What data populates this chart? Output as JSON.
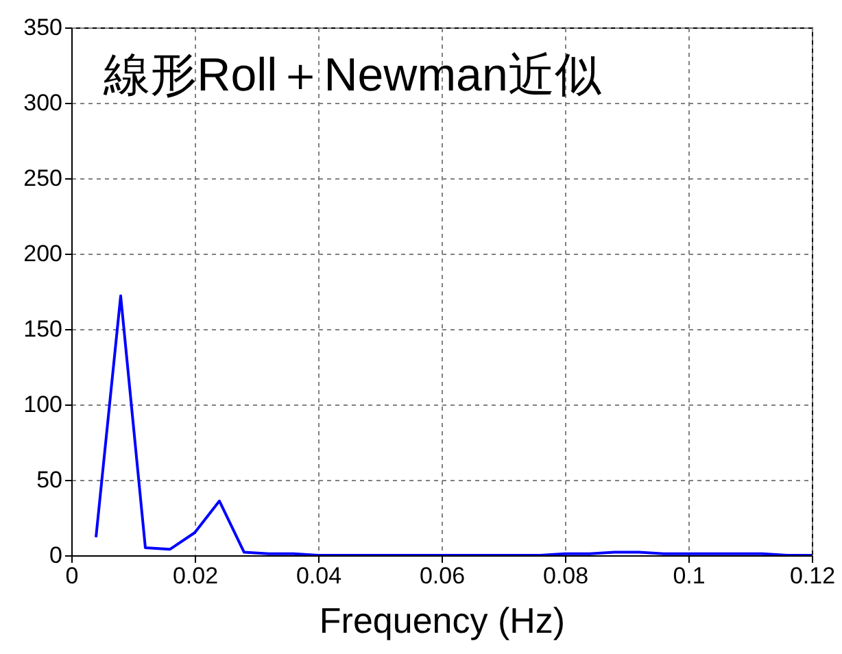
{
  "chart_data": {
    "type": "line",
    "title": "線形Roll＋Newman近似",
    "xlabel": "Frequency (Hz)",
    "x": [
      0.004,
      0.008,
      0.012,
      0.016,
      0.02,
      0.024,
      0.028,
      0.032,
      0.036,
      0.04,
      0.044,
      0.048,
      0.052,
      0.056,
      0.06,
      0.064,
      0.068,
      0.072,
      0.076,
      0.08,
      0.084,
      0.088,
      0.092,
      0.096,
      0.1,
      0.104,
      0.108,
      0.112,
      0.116,
      0.12
    ],
    "series": [
      {
        "color": "#0000ff",
        "values": [
          12,
          172,
          5,
          4,
          15,
          36,
          2,
          1,
          1,
          0,
          0,
          0,
          0,
          0,
          0,
          0,
          0,
          0,
          0,
          1,
          1,
          2,
          2,
          1,
          1,
          1,
          1,
          1,
          0,
          0
        ]
      }
    ],
    "xlim": [
      0,
      0.12
    ],
    "xticks": [
      0,
      0.02,
      0.04,
      0.06,
      0.08,
      0.1,
      0.12
    ],
    "ylim": [
      0,
      350
    ],
    "yticks": [
      0,
      50,
      100,
      150,
      200,
      250,
      300,
      350
    ],
    "grid": true,
    "marker": "none",
    "line_style": "solid"
  }
}
